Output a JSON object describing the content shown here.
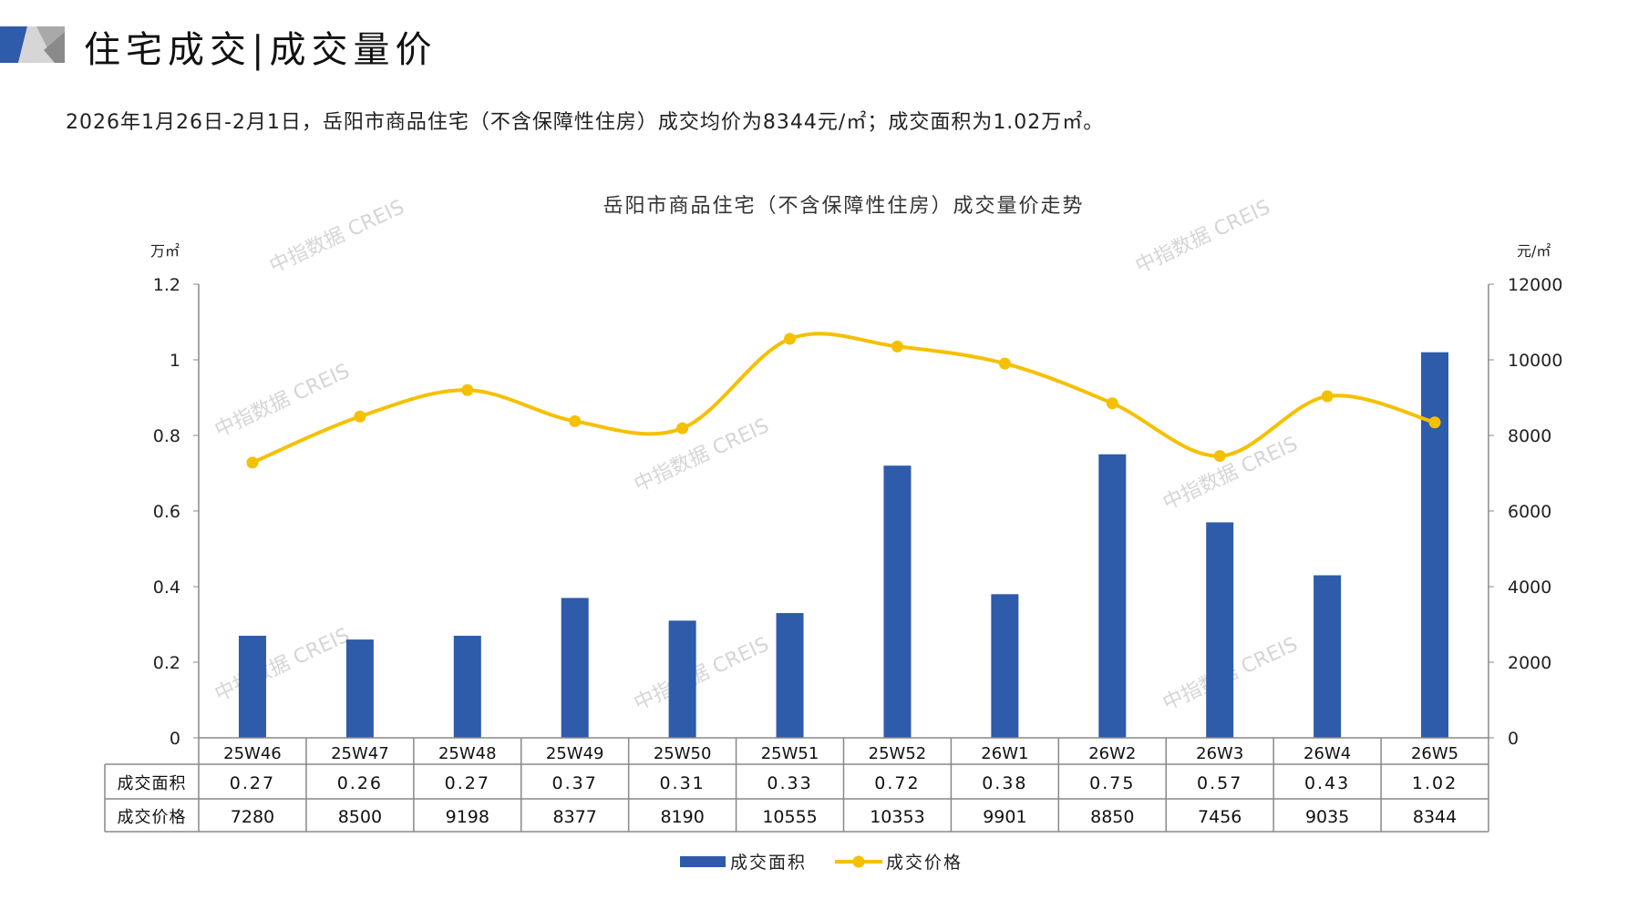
{
  "header": {
    "title": "住宅成交|成交量价",
    "summary": "2026年1月26日-2月1日，岳阳市商品住宅（不含保障性住房）成交均价为8344元/㎡；成交面积为1.02万㎡。"
  },
  "watermark": "中指数据 CREIS",
  "colors": {
    "bar": "#2E5BAA",
    "line": "#F5C000",
    "grid": "#888888"
  },
  "chart_data": {
    "type": "bar+line",
    "title": "岳阳市商品住宅（不含保障性住房）成交量价走势",
    "categories": [
      "25W46",
      "25W47",
      "25W48",
      "25W49",
      "25W50",
      "25W51",
      "25W52",
      "26W1",
      "26W2",
      "26W3",
      "26W4",
      "26W5"
    ],
    "left_axis": {
      "label": "万㎡",
      "ylim": [
        0,
        1.2
      ],
      "ticks": [
        "0",
        "0.2",
        "0.4",
        "0.6",
        "0.8",
        "1",
        "1.2"
      ]
    },
    "right_axis": {
      "label": "元/㎡",
      "ylim": [
        0,
        12000
      ],
      "ticks": [
        "0",
        "2000",
        "4000",
        "6000",
        "8000",
        "10000",
        "12000"
      ]
    },
    "series": [
      {
        "name": "成交面积",
        "type": "bar",
        "axis": "left",
        "values": [
          0.27,
          0.26,
          0.27,
          0.37,
          0.31,
          0.33,
          0.72,
          0.38,
          0.75,
          0.57,
          0.43,
          1.02
        ],
        "labels": [
          "0.27",
          "0.26",
          "0.27",
          "0.37",
          "0.31",
          "0.33",
          "0.72",
          "0.38",
          "0.75",
          "0.57",
          "0.43",
          "1.02"
        ]
      },
      {
        "name": "成交价格",
        "type": "line",
        "axis": "right",
        "values": [
          7280,
          8500,
          9198,
          8377,
          8190,
          10555,
          10353,
          9901,
          8850,
          7456,
          9035,
          8344
        ],
        "labels": [
          "7280",
          "8500",
          "9198",
          "8377",
          "8190",
          "10555",
          "10353",
          "9901",
          "8850",
          "7456",
          "9035",
          "8344"
        ]
      }
    ],
    "legend_position": "bottom",
    "data_table": true
  }
}
